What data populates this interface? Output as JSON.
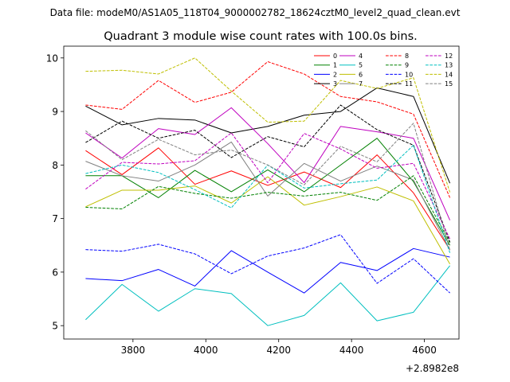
{
  "header": {
    "data_file": "Data file: modeM0/AS1A05_118T04_9000002782_18624cztM0_level2_quad_clean.evt"
  },
  "chart_data": {
    "type": "line",
    "title": "Quadrant 3 module wise count rates with 100.0s bins.",
    "xlabel": "",
    "ylabel": "",
    "x_offset_label": "+2.8982e8",
    "xlim": [
      3610,
      4695
    ],
    "ylim": [
      4.75,
      10.22
    ],
    "xticks": [
      3800,
      4000,
      4200,
      4400,
      4600
    ],
    "yticks": [
      5,
      6,
      7,
      8,
      9,
      10
    ],
    "x": [
      3670,
      3770,
      3870,
      3970,
      4070,
      4170,
      4270,
      4370,
      4470,
      4570,
      4670
    ],
    "legend_position": "top-right",
    "series": [
      {
        "name": "0",
        "color": "#ff0000",
        "dash": "solid",
        "values": [
          8.27,
          7.82,
          8.32,
          7.64,
          7.89,
          7.62,
          7.87,
          7.58,
          8.19,
          7.48,
          6.42
        ]
      },
      {
        "name": "1",
        "color": "#008000",
        "dash": "solid",
        "values": [
          7.8,
          7.8,
          7.39,
          7.9,
          7.5,
          7.91,
          7.5,
          8.0,
          8.5,
          7.69,
          6.5
        ]
      },
      {
        "name": "2",
        "color": "#0000ff",
        "dash": "solid",
        "values": [
          5.88,
          5.84,
          6.05,
          5.74,
          6.4,
          6.0,
          5.61,
          6.18,
          6.03,
          6.44,
          6.28
        ]
      },
      {
        "name": "3",
        "color": "#000000",
        "dash": "solid",
        "values": [
          9.1,
          8.75,
          8.87,
          8.84,
          8.6,
          8.72,
          8.93,
          9.0,
          9.44,
          9.28,
          7.66
        ]
      },
      {
        "name": "4",
        "color": "#bf00bf",
        "dash": "solid",
        "values": [
          8.6,
          8.13,
          8.68,
          8.57,
          9.07,
          8.4,
          7.67,
          8.72,
          8.62,
          8.5,
          6.97
        ]
      },
      {
        "name": "5",
        "color": "#00bfbf",
        "dash": "solid",
        "values": [
          5.11,
          5.77,
          5.27,
          5.69,
          5.6,
          5.0,
          5.19,
          5.8,
          5.09,
          5.25,
          6.12
        ]
      },
      {
        "name": "6",
        "color": "#bfbf00",
        "dash": "solid",
        "values": [
          7.22,
          7.53,
          7.53,
          7.61,
          7.29,
          7.78,
          7.25,
          7.41,
          7.59,
          7.33,
          6.15
        ]
      },
      {
        "name": "7",
        "color": "#808080",
        "dash": "solid",
        "values": [
          8.07,
          7.8,
          7.7,
          8.0,
          8.43,
          7.42,
          8.03,
          7.7,
          7.98,
          7.72,
          6.41
        ]
      },
      {
        "name": "8",
        "color": "#ff0000",
        "dash": "dashed",
        "values": [
          9.12,
          9.04,
          9.58,
          9.17,
          9.36,
          9.93,
          9.7,
          9.28,
          9.18,
          8.95,
          7.39
        ]
      },
      {
        "name": "9",
        "color": "#008000",
        "dash": "dashed",
        "values": [
          7.21,
          7.18,
          7.6,
          7.47,
          7.38,
          7.49,
          7.42,
          7.49,
          7.34,
          7.8,
          6.55
        ]
      },
      {
        "name": "10",
        "color": "#0000ff",
        "dash": "dashed",
        "values": [
          6.42,
          6.39,
          6.52,
          6.34,
          5.97,
          6.3,
          6.45,
          6.7,
          5.79,
          6.25,
          5.61
        ]
      },
      {
        "name": "11",
        "color": "#000000",
        "dash": "dashed",
        "values": [
          8.42,
          8.82,
          8.5,
          8.65,
          8.14,
          8.53,
          8.34,
          9.12,
          8.66,
          8.37,
          6.56
        ]
      },
      {
        "name": "12",
        "color": "#bf00bf",
        "dash": "dashed",
        "values": [
          7.55,
          8.05,
          8.02,
          8.08,
          8.6,
          7.67,
          8.59,
          8.3,
          7.94,
          8.03,
          6.62
        ]
      },
      {
        "name": "13",
        "color": "#00bfbf",
        "dash": "dashed",
        "values": [
          7.84,
          8.0,
          7.86,
          7.54,
          7.2,
          8.0,
          7.57,
          7.65,
          7.72,
          8.37,
          6.36
        ]
      },
      {
        "name": "14",
        "color": "#bfbf00",
        "dash": "dashed",
        "values": [
          9.75,
          9.77,
          9.7,
          10.0,
          9.38,
          8.8,
          8.82,
          9.58,
          9.43,
          9.63,
          7.49
        ]
      },
      {
        "name": "15",
        "color": "#808080",
        "dash": "dashed",
        "values": [
          8.64,
          8.1,
          8.48,
          8.19,
          8.28,
          8.0,
          7.63,
          8.35,
          8.06,
          8.78,
          6.41
        ]
      }
    ]
  }
}
